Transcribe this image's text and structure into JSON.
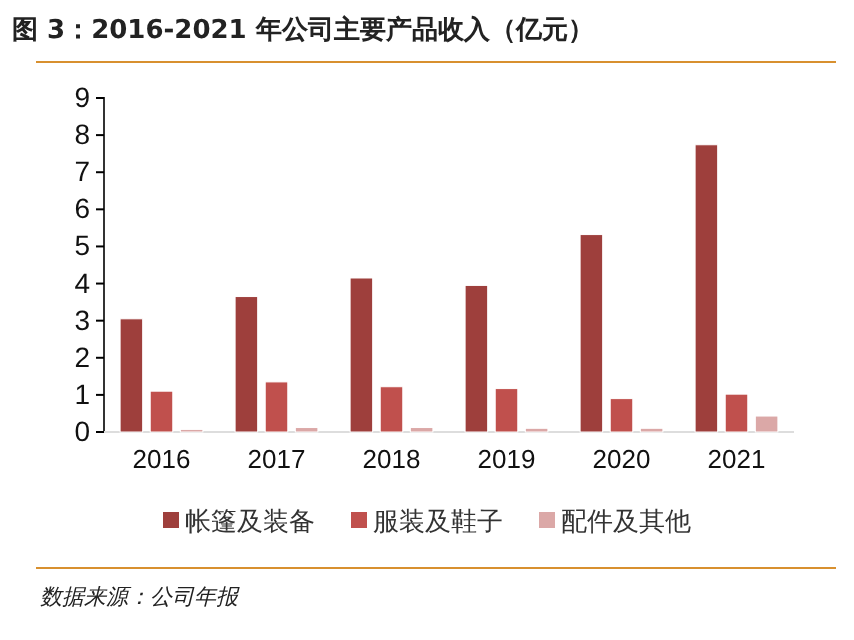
{
  "chart_data": {
    "type": "bar",
    "title": "图 3：2016-2021 年公司主要产品收入（亿元）",
    "categories": [
      "2016",
      "2017",
      "2018",
      "2019",
      "2020",
      "2021"
    ],
    "series": [
      {
        "name": "帐篷及装备",
        "color": "#9e3f3c",
        "values": [
          3.05,
          3.65,
          4.15,
          3.95,
          5.32,
          7.74
        ]
      },
      {
        "name": "服装及鞋子",
        "color": "#c0504d",
        "values": [
          1.1,
          1.35,
          1.22,
          1.17,
          0.9,
          1.02
        ]
      },
      {
        "name": "配件及其他",
        "color": "#dba8a7",
        "values": [
          0.07,
          0.12,
          0.12,
          0.1,
          0.1,
          0.43
        ]
      }
    ],
    "ylim": [
      0,
      9
    ],
    "yticks": [
      0,
      1,
      2,
      3,
      4,
      5,
      6,
      7,
      8,
      9
    ],
    "grid": false,
    "legend": "bottom",
    "annotations": [
      "数据来源：公司年报"
    ]
  }
}
